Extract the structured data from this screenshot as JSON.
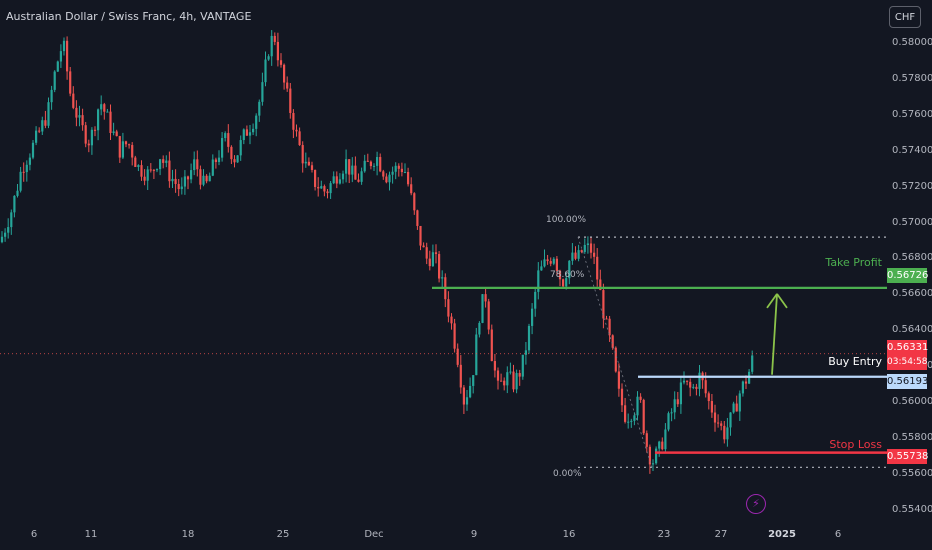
{
  "header": {
    "title": "Australian Dollar / Swiss Franc, 4h, VANTAGE"
  },
  "currency_button": {
    "label": "CHF"
  },
  "price_axis": {
    "ticks": [
      "0.58000",
      "0.57800",
      "0.57600",
      "0.57400",
      "0.57200",
      "0.57000",
      "0.56800",
      "0.56600",
      "0.56400",
      "0.56200",
      "0.56000",
      "0.55800",
      "0.55600",
      "0.55400"
    ]
  },
  "time_axis": {
    "ticks": [
      "6",
      "11",
      "18",
      "25",
      "Dec",
      "9",
      "16",
      "23",
      "27",
      "2025",
      "6"
    ]
  },
  "tags": {
    "take_profit": "0.56726",
    "current_price": "0.56331",
    "countdown": "03:54:58",
    "buy_entry": "0.56193",
    "stop_loss": "0.55738"
  },
  "annotations": {
    "take_profit": "Take Profit",
    "buy_entry": "Buy Entry",
    "stop_loss": "Stop Loss",
    "fib_100": "100.00%",
    "fib_786": "78.60%",
    "fib_0": "0.00%"
  },
  "colors": {
    "background": "#131722",
    "up": "#26a69a",
    "down": "#ef5350",
    "take_profit": "#4caf50",
    "buy_entry": "#bbd9fb",
    "stop_loss": "#f23645"
  },
  "icons": {
    "alert": "lightning-icon"
  },
  "chart_data": {
    "type": "candlestick",
    "symbol": "AUDCHF",
    "timeframe": "4h",
    "price_range": [
      0.554,
      0.582
    ],
    "levels": {
      "take_profit": 0.56726,
      "buy_entry": 0.56193,
      "stop_loss": 0.55738,
      "current": 0.56331,
      "fib_100": 0.5703,
      "fib_0": 0.5565
    },
    "close_path": [
      [
        0,
        0.57
      ],
      [
        12,
        0.572
      ],
      [
        22,
        0.5745
      ],
      [
        35,
        0.576
      ],
      [
        48,
        0.5778
      ],
      [
        56,
        0.5805
      ],
      [
        63,
        0.582
      ],
      [
        70,
        0.579
      ],
      [
        80,
        0.577
      ],
      [
        90,
        0.576
      ],
      [
        100,
        0.5785
      ],
      [
        110,
        0.577
      ],
      [
        120,
        0.5755
      ],
      [
        128,
        0.576
      ],
      [
        138,
        0.5745
      ],
      [
        150,
        0.574
      ],
      [
        160,
        0.5752
      ],
      [
        170,
        0.574
      ],
      [
        182,
        0.573
      ],
      [
        195,
        0.5748
      ],
      [
        205,
        0.5732
      ],
      [
        215,
        0.5748
      ],
      [
        225,
        0.5762
      ],
      [
        235,
        0.575
      ],
      [
        245,
        0.5765
      ],
      [
        255,
        0.5775
      ],
      [
        262,
        0.579
      ],
      [
        268,
        0.5815
      ],
      [
        274,
        0.5825
      ],
      [
        282,
        0.58
      ],
      [
        290,
        0.578
      ],
      [
        298,
        0.576
      ],
      [
        306,
        0.5745
      ],
      [
        316,
        0.5735
      ],
      [
        326,
        0.573
      ],
      [
        336,
        0.574
      ],
      [
        346,
        0.5748
      ],
      [
        356,
        0.5736
      ],
      [
        366,
        0.5745
      ],
      [
        376,
        0.5752
      ],
      [
        386,
        0.574
      ],
      [
        396,
        0.5744
      ],
      [
        404,
        0.5745
      ],
      [
        410,
        0.573
      ],
      [
        418,
        0.5705
      ],
      [
        426,
        0.569
      ],
      [
        434,
        0.5692
      ],
      [
        442,
        0.5675
      ],
      [
        450,
        0.5655
      ],
      [
        458,
        0.563
      ],
      [
        464,
        0.5605
      ],
      [
        472,
        0.5618
      ],
      [
        480,
        0.566
      ],
      [
        486,
        0.5668
      ],
      [
        492,
        0.5632
      ],
      [
        498,
        0.5612
      ],
      [
        506,
        0.562
      ],
      [
        514,
        0.5615
      ],
      [
        522,
        0.5625
      ],
      [
        530,
        0.565
      ],
      [
        538,
        0.568
      ],
      [
        546,
        0.5688
      ],
      [
        554,
        0.5693
      ],
      [
        562,
        0.5675
      ],
      [
        570,
        0.569
      ],
      [
        578,
        0.569
      ],
      [
        584,
        0.5697
      ],
      [
        592,
        0.5695
      ],
      [
        600,
        0.567
      ],
      [
        606,
        0.565
      ],
      [
        612,
        0.5635
      ],
      [
        618,
        0.561
      ],
      [
        626,
        0.5595
      ],
      [
        634,
        0.56
      ],
      [
        640,
        0.5605
      ],
      [
        646,
        0.558
      ],
      [
        652,
        0.5568
      ],
      [
        660,
        0.5576
      ],
      [
        668,
        0.5592
      ],
      [
        676,
        0.5605
      ],
      [
        684,
        0.5615
      ],
      [
        692,
        0.5611
      ],
      [
        700,
        0.562
      ],
      [
        708,
        0.5605
      ],
      [
        716,
        0.5595
      ],
      [
        724,
        0.5585
      ],
      [
        732,
        0.5595
      ],
      [
        740,
        0.561
      ],
      [
        748,
        0.562
      ],
      [
        754,
        0.5633
      ]
    ]
  }
}
